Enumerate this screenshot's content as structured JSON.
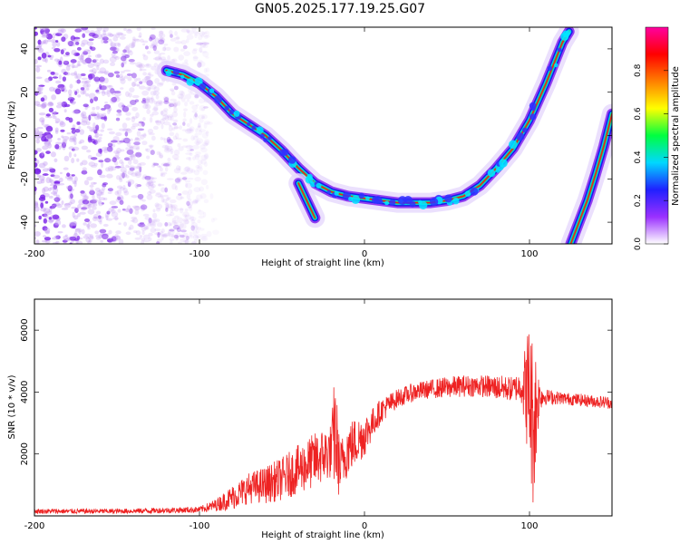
{
  "title": "GN05.2025.177.19.25.G07",
  "chart_data": [
    {
      "type": "heatmap",
      "xlabel": "Height of straight line (km)",
      "ylabel": "Frequency (Hz)",
      "xlim": [
        -200,
        150
      ],
      "ylim": [
        -50,
        50
      ],
      "xticks": [
        "-200",
        "-100",
        "0",
        "100"
      ],
      "xtick_values": [
        -200,
        -100,
        0,
        100
      ],
      "yticks": [
        "40",
        "20",
        "0",
        "-20",
        "-40"
      ],
      "ytick_values": [
        40,
        20,
        0,
        -20,
        -40
      ],
      "colorbar": {
        "label": "Normalized spectral amplitude",
        "range": [
          0,
          1
        ],
        "ticks": [
          "0.0",
          "0.2",
          "0.4",
          "0.6",
          "0.8"
        ],
        "tick_values": [
          0.0,
          0.2,
          0.4,
          0.6,
          0.8
        ],
        "colors": [
          "#ffffff",
          "#9a30ff",
          "#2020ff",
          "#00d8ff",
          "#00ff40",
          "#ffff00",
          "#ff8000",
          "#ff0000",
          "#ff00a0"
        ]
      },
      "ridges": [
        {
          "points": [
            [
              -120,
              30
            ],
            [
              -110,
              28
            ],
            [
              -100,
              24
            ],
            [
              -90,
              18
            ],
            [
              -80,
              10
            ],
            [
              -70,
              5
            ],
            [
              -60,
              0
            ],
            [
              -50,
              -7
            ],
            [
              -40,
              -15
            ],
            [
              -30,
              -22
            ],
            [
              -20,
              -26
            ],
            [
              -10,
              -28
            ],
            [
              0,
              -29
            ],
            [
              10,
              -30
            ],
            [
              20,
              -31
            ],
            [
              30,
              -31
            ],
            [
              40,
              -31
            ],
            [
              50,
              -30
            ],
            [
              60,
              -28
            ],
            [
              70,
              -23
            ],
            [
              80,
              -15
            ],
            [
              90,
              -6
            ],
            [
              100,
              7
            ],
            [
              110,
              24
            ],
            [
              120,
              43
            ],
            [
              124,
              48
            ]
          ]
        },
        {
          "points": [
            [
              125,
              -50
            ],
            [
              130,
              -40
            ],
            [
              135,
              -30
            ],
            [
              140,
              -18
            ],
            [
              145,
              -5
            ],
            [
              150,
              10
            ]
          ]
        },
        {
          "points": [
            [
              -40,
              -22
            ],
            [
              -35,
              -30
            ],
            [
              -30,
              -38
            ]
          ]
        }
      ],
      "noise_region": {
        "x_from": -200,
        "x_to": -95
      }
    },
    {
      "type": "line",
      "xlabel": "Height of straight line (km)",
      "ylabel": "SNR (10 * v/v)",
      "xlim": [
        -200,
        150
      ],
      "ylim": [
        0,
        7000
      ],
      "xticks": [
        "-200",
        "-100",
        "0",
        "100"
      ],
      "xtick_values": [
        -200,
        -100,
        0,
        100
      ],
      "yticks": [
        "2000",
        "4000",
        "6000"
      ],
      "ytick_values": [
        2000,
        4000,
        6000
      ],
      "color": "#ee2222",
      "series": [
        {
          "x": [
            -200,
            -150,
            -100,
            -90,
            -80,
            -70,
            -60,
            -50,
            -40,
            -30,
            -20,
            -18,
            -15,
            -10,
            -5,
            0,
            5,
            10,
            20,
            30,
            40,
            50,
            60,
            70,
            80,
            90,
            95,
            100,
            102,
            104,
            106,
            110,
            120,
            130,
            140,
            150
          ],
          "mean": [
            150,
            150,
            200,
            350,
            600,
            900,
            1000,
            1200,
            1500,
            1800,
            2100,
            2800,
            1500,
            2200,
            2400,
            2600,
            3000,
            3400,
            3800,
            4000,
            4100,
            4150,
            4200,
            4200,
            4150,
            4100,
            4200,
            4000,
            3000,
            3500,
            3900,
            3850,
            3800,
            3750,
            3700,
            3650
          ],
          "spread": [
            80,
            80,
            100,
            200,
            400,
            500,
            600,
            700,
            800,
            900,
            900,
            2000,
            900,
            900,
            800,
            700,
            500,
            400,
            300,
            300,
            300,
            350,
            350,
            350,
            400,
            400,
            500,
            2500,
            2800,
            2000,
            500,
            250,
            200,
            200,
            200,
            200
          ]
        }
      ]
    }
  ]
}
